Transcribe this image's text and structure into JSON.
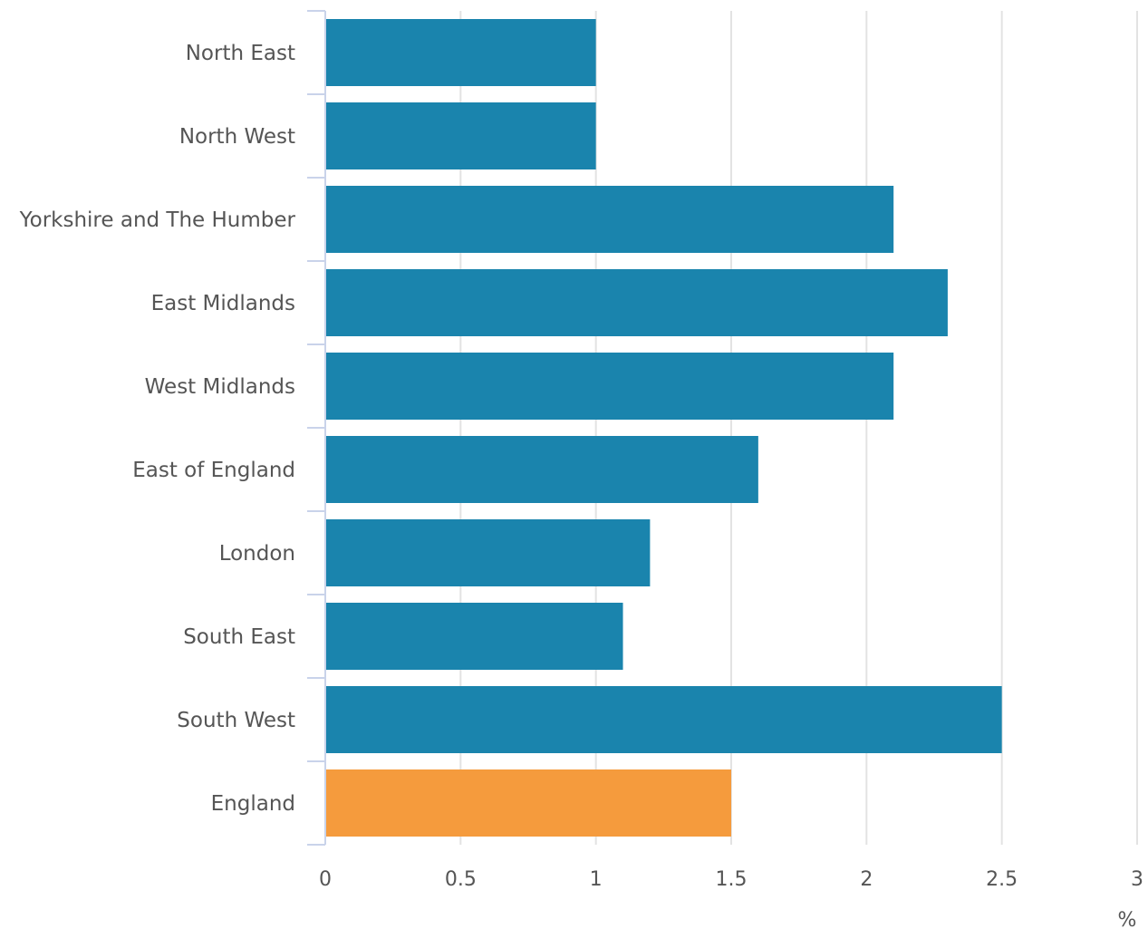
{
  "chart_data": {
    "type": "bar",
    "orientation": "horizontal",
    "categories": [
      "North East",
      "North West",
      "Yorkshire and The Humber",
      "East Midlands",
      "West Midlands",
      "East of England",
      "London",
      "South East",
      "South West",
      "England"
    ],
    "values": [
      1.0,
      1.0,
      2.1,
      2.3,
      2.1,
      1.6,
      1.2,
      1.1,
      2.5,
      1.5
    ],
    "highlight_category": "England",
    "xlim": [
      0,
      3
    ],
    "xticks": [
      0,
      0.5,
      1,
      1.5,
      2,
      2.5,
      3
    ],
    "xtick_labels": [
      "0",
      "0.5",
      "1",
      "1.5",
      "2",
      "2.5",
      "3"
    ],
    "xunit": "%",
    "grid": "vertical",
    "title": "",
    "xlabel": "",
    "ylabel": ""
  },
  "colors": {
    "bar": "#1a84ad",
    "highlight": "#f59b3d",
    "grid": "#e3e3e3",
    "axis": "#c9d3ea",
    "text": "#555555"
  }
}
